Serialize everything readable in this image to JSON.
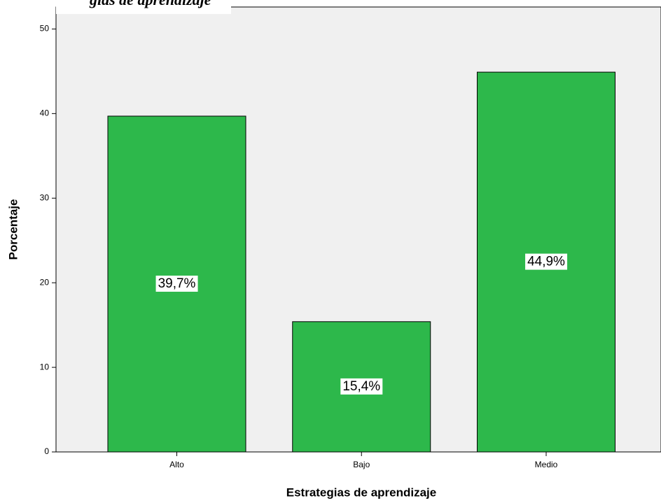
{
  "chart_data": {
    "type": "bar",
    "title": "gias de aprendizaje",
    "x_label": "Estrategias de aprendizaje",
    "y_label": "Porcentaje",
    "categories": [
      "Alto",
      "Bajo",
      "Medio"
    ],
    "values": [
      39.7,
      15.4,
      44.9
    ],
    "value_labels": [
      "39,7%",
      "15,4%",
      "44,9%"
    ],
    "color": "#2db84b",
    "ylim": [
      0,
      52.6
    ],
    "yticks": [
      0,
      10,
      20,
      30,
      40,
      50
    ],
    "grid": false
  }
}
